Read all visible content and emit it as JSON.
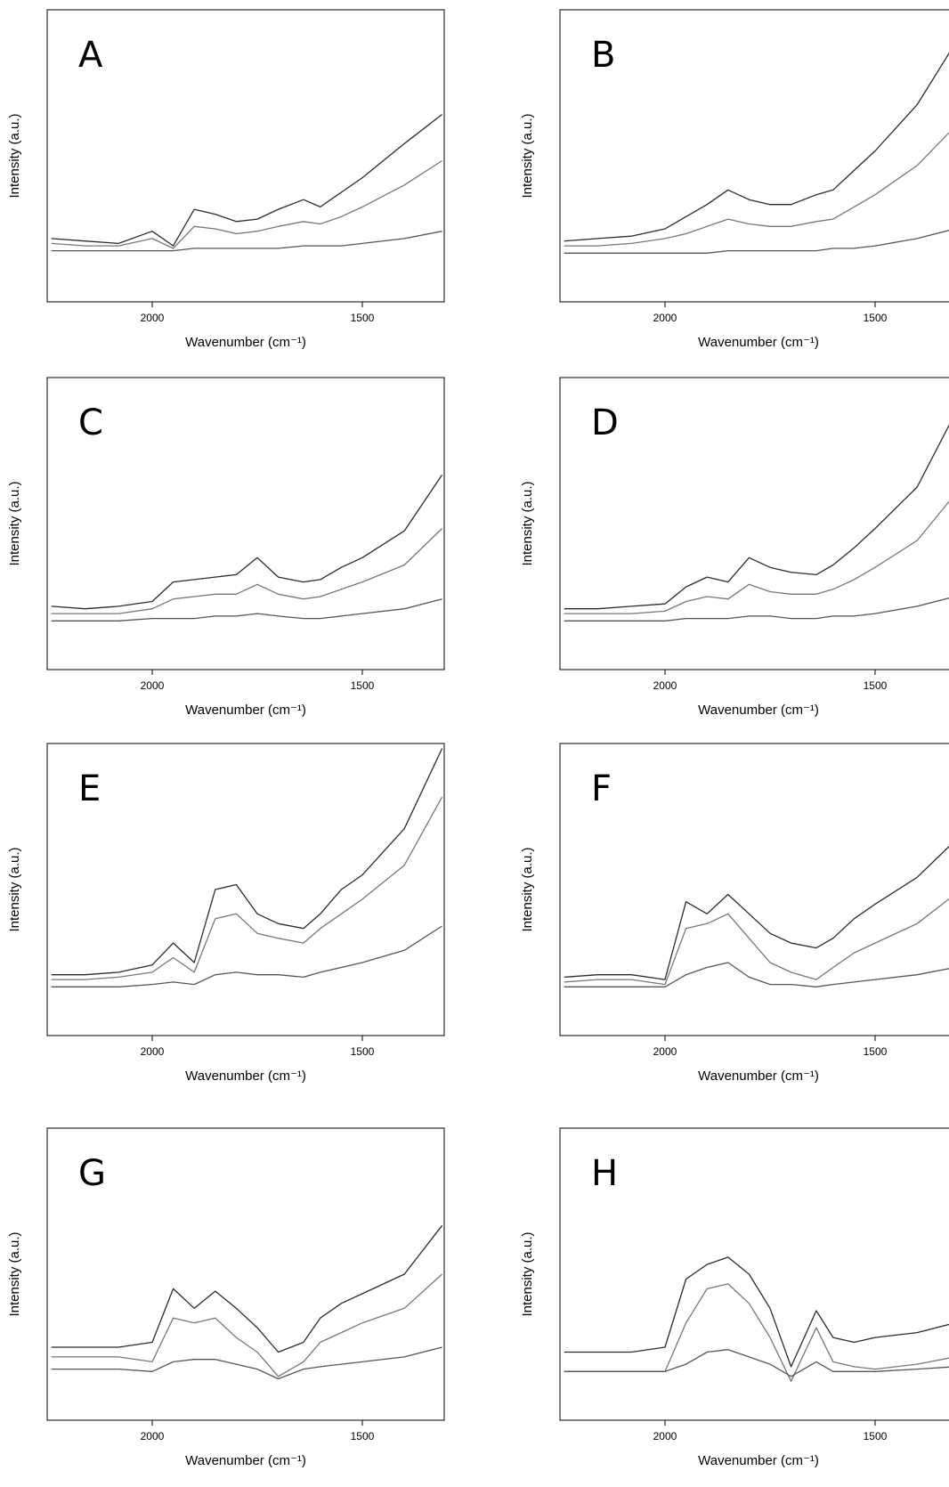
{
  "chart_data": [
    {
      "type": "line",
      "title": "A",
      "x_label": "Wavenumber (cm⁻¹)",
      "y_label": "Intensity (a.u.)",
      "x": [
        2240,
        2160,
        2080,
        2000,
        1950,
        1900,
        1850,
        1800,
        1750,
        1700,
        1640,
        1600,
        1550,
        1500,
        1400,
        1310
      ],
      "xlim": [
        2250,
        1305
      ],
      "xticks": [
        2000,
        1500
      ],
      "ylim": [
        -20,
        100
      ],
      "series": [
        {
          "color": "#2b2b2b",
          "values": [
            6,
            5,
            4,
            9,
            3,
            18,
            16,
            13,
            14,
            18,
            22,
            19,
            25,
            31,
            45,
            57
          ]
        },
        {
          "color": "#777777",
          "values": [
            4,
            3,
            3,
            6,
            2,
            11,
            10,
            8,
            9,
            11,
            13,
            12,
            15,
            19,
            28,
            38
          ]
        },
        {
          "color": "#555555",
          "values": [
            1,
            1,
            1,
            1,
            1,
            2,
            2,
            2,
            2,
            2,
            3,
            3,
            3,
            4,
            6,
            9
          ]
        }
      ]
    },
    {
      "type": "line",
      "title": "B",
      "x_label": "Wavenumber (cm⁻¹)",
      "y_label": "Intensity (a.u.)",
      "x": [
        2240,
        2160,
        2080,
        2000,
        1950,
        1900,
        1850,
        1800,
        1750,
        1700,
        1640,
        1600,
        1550,
        1500,
        1400,
        1310
      ],
      "xlim": [
        2250,
        1305
      ],
      "xticks": [
        2000,
        1500
      ],
      "ylim": [
        -20,
        100
      ],
      "series": [
        {
          "color": "#2b2b2b",
          "values": [
            5,
            6,
            7,
            10,
            15,
            20,
            26,
            22,
            20,
            20,
            24,
            26,
            34,
            42,
            61,
            86
          ]
        },
        {
          "color": "#777777",
          "values": [
            3,
            3,
            4,
            6,
            8,
            11,
            14,
            12,
            11,
            11,
            13,
            14,
            19,
            24,
            36,
            52
          ]
        },
        {
          "color": "#555555",
          "values": [
            0,
            0,
            0,
            0,
            0,
            0,
            1,
            1,
            1,
            1,
            1,
            2,
            2,
            3,
            6,
            10
          ]
        }
      ]
    },
    {
      "type": "line",
      "title": "C",
      "x_label": "Wavenumber (cm⁻¹)",
      "y_label": "Intensity (a.u.)",
      "x": [
        2240,
        2160,
        2080,
        2000,
        1950,
        1900,
        1850,
        1800,
        1750,
        1700,
        1640,
        1600,
        1550,
        1500,
        1400,
        1310
      ],
      "xlim": [
        2250,
        1305
      ],
      "xticks": [
        2000,
        1500
      ],
      "ylim": [
        -20,
        100
      ],
      "series": [
        {
          "color": "#2b2b2b",
          "values": [
            6,
            5,
            6,
            8,
            16,
            17,
            18,
            19,
            26,
            18,
            16,
            17,
            22,
            26,
            37,
            60
          ]
        },
        {
          "color": "#777777",
          "values": [
            3,
            3,
            3,
            5,
            9,
            10,
            11,
            11,
            15,
            11,
            9,
            10,
            13,
            16,
            23,
            38
          ]
        },
        {
          "color": "#555555",
          "values": [
            0,
            0,
            0,
            1,
            1,
            1,
            2,
            2,
            3,
            2,
            1,
            1,
            2,
            3,
            5,
            9
          ]
        }
      ]
    },
    {
      "type": "line",
      "title": "D",
      "x_label": "Wavenumber (cm⁻¹)",
      "y_label": "Intensity (a.u.)",
      "x": [
        2240,
        2160,
        2080,
        2000,
        1950,
        1900,
        1850,
        1800,
        1750,
        1700,
        1640,
        1600,
        1550,
        1500,
        1400,
        1310
      ],
      "xlim": [
        2250,
        1305
      ],
      "xticks": [
        2000,
        1500
      ],
      "ylim": [
        -20,
        100
      ],
      "series": [
        {
          "color": "#2b2b2b",
          "values": [
            5,
            5,
            6,
            7,
            14,
            18,
            16,
            26,
            22,
            20,
            19,
            23,
            30,
            38,
            55,
            85
          ]
        },
        {
          "color": "#777777",
          "values": [
            3,
            3,
            3,
            4,
            8,
            10,
            9,
            15,
            12,
            11,
            11,
            13,
            17,
            22,
            33,
            52
          ]
        },
        {
          "color": "#555555",
          "values": [
            0,
            0,
            0,
            0,
            1,
            1,
            1,
            2,
            2,
            1,
            1,
            2,
            2,
            3,
            6,
            10
          ]
        }
      ]
    },
    {
      "type": "line",
      "title": "E",
      "x_label": "Wavenumber (cm⁻¹)",
      "y_label": "Intensity (a.u.)",
      "x": [
        2240,
        2160,
        2080,
        2000,
        1950,
        1900,
        1850,
        1800,
        1750,
        1700,
        1640,
        1600,
        1550,
        1500,
        1400,
        1310
      ],
      "xlim": [
        2250,
        1305
      ],
      "xticks": [
        2000,
        1500
      ],
      "ylim": [
        -20,
        100
      ],
      "series": [
        {
          "color": "#2b2b2b",
          "values": [
            5,
            5,
            6,
            9,
            18,
            10,
            40,
            42,
            30,
            26,
            24,
            30,
            40,
            46,
            65,
            98
          ]
        },
        {
          "color": "#777777",
          "values": [
            3,
            3,
            4,
            6,
            12,
            6,
            28,
            30,
            22,
            20,
            18,
            24,
            30,
            36,
            50,
            78
          ]
        },
        {
          "color": "#555555",
          "values": [
            0,
            0,
            0,
            1,
            2,
            1,
            5,
            6,
            5,
            5,
            4,
            6,
            8,
            10,
            15,
            25
          ]
        }
      ]
    },
    {
      "type": "line",
      "title": "F",
      "x_label": "Wavenumber (cm⁻¹)",
      "y_label": "Intensity (a.u.)",
      "x": [
        2240,
        2160,
        2080,
        2000,
        1950,
        1900,
        1850,
        1800,
        1750,
        1700,
        1640,
        1600,
        1550,
        1500,
        1400,
        1310
      ],
      "xlim": [
        2250,
        1305
      ],
      "xticks": [
        2000,
        1500
      ],
      "ylim": [
        -20,
        100
      ],
      "series": [
        {
          "color": "#2b2b2b",
          "values": [
            4,
            5,
            5,
            3,
            35,
            30,
            38,
            30,
            22,
            18,
            16,
            20,
            28,
            34,
            45,
            60
          ]
        },
        {
          "color": "#777777",
          "values": [
            2,
            3,
            3,
            1,
            24,
            26,
            30,
            20,
            10,
            6,
            3,
            8,
            14,
            18,
            26,
            38
          ]
        },
        {
          "color": "#555555",
          "values": [
            0,
            0,
            0,
            0,
            5,
            8,
            10,
            4,
            1,
            1,
            0,
            1,
            2,
            3,
            5,
            8
          ]
        }
      ]
    },
    {
      "type": "line",
      "title": "G",
      "x_label": "Wavenumber (cm⁻¹)",
      "y_label": "Intensity (a.u.)",
      "x": [
        2240,
        2160,
        2080,
        2000,
        1950,
        1900,
        1850,
        1800,
        1750,
        1700,
        1640,
        1600,
        1550,
        1500,
        1400,
        1310
      ],
      "xlim": [
        2250,
        1305
      ],
      "xticks": [
        2000,
        1500
      ],
      "ylim": [
        -20,
        100
      ],
      "series": [
        {
          "color": "#2b2b2b",
          "values": [
            10,
            10,
            10,
            12,
            34,
            26,
            33,
            26,
            18,
            8,
            12,
            22,
            28,
            32,
            40,
            60
          ]
        },
        {
          "color": "#777777",
          "values": [
            6,
            6,
            6,
            4,
            22,
            20,
            22,
            14,
            8,
            -2,
            4,
            12,
            16,
            20,
            26,
            40
          ]
        },
        {
          "color": "#555555",
          "values": [
            1,
            1,
            1,
            0,
            4,
            5,
            5,
            3,
            1,
            -3,
            1,
            2,
            3,
            4,
            6,
            10
          ]
        }
      ]
    },
    {
      "type": "line",
      "title": "H",
      "x_label": "Wavenumber (cm⁻¹)",
      "y_label": "Intensity (a.u.)",
      "x": [
        2240,
        2160,
        2080,
        2000,
        1950,
        1900,
        1850,
        1800,
        1750,
        1700,
        1640,
        1600,
        1550,
        1500,
        1400,
        1310
      ],
      "xlim": [
        2250,
        1305
      ],
      "xticks": [
        2000,
        1500
      ],
      "ylim": [
        -20,
        100
      ],
      "series": [
        {
          "color": "#2b2b2b",
          "values": [
            8,
            8,
            8,
            10,
            38,
            44,
            47,
            40,
            26,
            2,
            25,
            14,
            12,
            14,
            16,
            20
          ]
        },
        {
          "color": "#777777",
          "values": [
            0,
            0,
            0,
            0,
            20,
            34,
            36,
            28,
            14,
            -4,
            18,
            4,
            2,
            1,
            3,
            6
          ]
        },
        {
          "color": "#555555",
          "values": [
            0,
            0,
            0,
            0,
            3,
            8,
            9,
            6,
            3,
            -2,
            4,
            0,
            0,
            0,
            1,
            2
          ]
        }
      ]
    }
  ]
}
